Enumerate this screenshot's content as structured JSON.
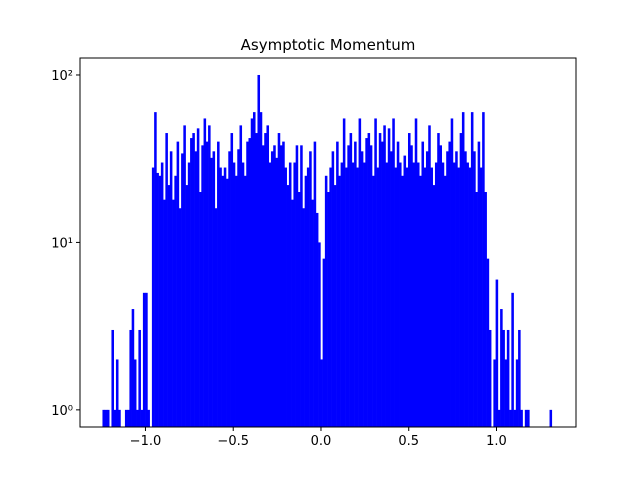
{
  "chart_data": {
    "type": "histogram",
    "title": "Asymptotic Momentum",
    "color": "#0000ff",
    "log_y": true,
    "bins": [
      -1.245,
      -1.2322,
      -1.2194,
      -1.2066,
      -1.1938,
      -1.181,
      -1.1682,
      -1.1554,
      -1.1426,
      -1.1298,
      -1.117,
      -1.1042,
      -1.0914,
      -1.0786,
      -1.0658,
      -1.053,
      -1.0402,
      -1.0274,
      -1.0146,
      -1.0018,
      -0.989,
      -0.9762,
      -0.9634,
      -0.9506,
      -0.9378,
      -0.925,
      -0.9122,
      -0.8994,
      -0.8866,
      -0.8738,
      -0.861,
      -0.8482,
      -0.8354,
      -0.8226,
      -0.8098,
      -0.797,
      -0.7842,
      -0.7714,
      -0.7586,
      -0.7458,
      -0.733,
      -0.7202,
      -0.7074,
      -0.6946,
      -0.6818,
      -0.669,
      -0.6562,
      -0.6434,
      -0.6306,
      -0.6178,
      -0.605,
      -0.5922,
      -0.5794,
      -0.5666,
      -0.5538,
      -0.541,
      -0.5282,
      -0.5154,
      -0.5026,
      -0.4898,
      -0.477,
      -0.4642,
      -0.4514,
      -0.4386,
      -0.4258,
      -0.413,
      -0.4002,
      -0.3874,
      -0.3746,
      -0.3618,
      -0.349,
      -0.3362,
      -0.3234,
      -0.3106,
      -0.2978,
      -0.285,
      -0.2722,
      -0.2594,
      -0.2466,
      -0.2338,
      -0.221,
      -0.2082,
      -0.1954,
      -0.1826,
      -0.1698,
      -0.157,
      -0.1442,
      -0.1314,
      -0.1186,
      -0.1058,
      -0.093,
      -0.0802,
      -0.0674,
      -0.0546,
      -0.0418,
      -0.029,
      -0.0162,
      -0.0034,
      0.0094,
      0.0222,
      0.035,
      0.0478,
      0.0606,
      0.0734,
      0.0862,
      0.099,
      0.1118,
      0.1246,
      0.1374,
      0.1502,
      0.163,
      0.1758,
      0.1886,
      0.2014,
      0.2142,
      0.227,
      0.2398,
      0.2526,
      0.2654,
      0.2782,
      0.291,
      0.3038,
      0.3166,
      0.3294,
      0.3422,
      0.355,
      0.3678,
      0.3806,
      0.3934,
      0.4062,
      0.419,
      0.4318,
      0.4446,
      0.4574,
      0.4702,
      0.483,
      0.4958,
      0.5086,
      0.5214,
      0.5342,
      0.547,
      0.5598,
      0.5726,
      0.5854,
      0.5982,
      0.611,
      0.6238,
      0.6366,
      0.6494,
      0.6622,
      0.675,
      0.6878,
      0.7006,
      0.7134,
      0.7262,
      0.739,
      0.7518,
      0.7646,
      0.7774,
      0.7902,
      0.803,
      0.8158,
      0.8286,
      0.8414,
      0.8542,
      0.867,
      0.8798,
      0.8926,
      0.9054,
      0.9182,
      0.931,
      0.9438,
      0.9566,
      0.9694,
      0.9822,
      0.995,
      1.0078,
      1.0206,
      1.0334,
      1.0462,
      1.059,
      1.0718,
      1.0846,
      1.0974,
      1.1102,
      1.123,
      1.1358,
      1.1486,
      1.1614,
      1.1742,
      1.187,
      1.1998,
      1.2126,
      1.2254,
      1.2382,
      1.251,
      1.2638,
      1.2766,
      1.2894,
      1.3022,
      1.315
    ],
    "values": [
      1,
      1,
      1,
      0,
      3,
      1,
      2,
      1,
      0,
      0,
      1,
      1,
      3,
      4,
      2,
      1,
      3,
      1,
      5,
      5,
      1,
      0,
      28,
      60,
      26,
      25,
      30,
      18,
      45,
      22,
      35,
      18,
      25,
      40,
      16,
      34,
      50,
      22,
      30,
      42,
      45,
      35,
      48,
      20,
      38,
      55,
      40,
      50,
      32,
      35,
      16,
      40,
      28,
      25,
      28,
      24,
      35,
      45,
      30,
      25,
      36,
      50,
      30,
      25,
      40,
      42,
      55,
      60,
      45,
      100,
      60,
      38,
      45,
      50,
      30,
      35,
      38,
      32,
      45,
      38,
      40,
      28,
      22,
      30,
      18,
      30,
      38,
      20,
      38,
      16,
      25,
      28,
      35,
      18,
      40,
      15,
      10,
      2,
      8,
      25,
      20,
      28,
      35,
      22,
      40,
      25,
      30,
      55,
      28,
      38,
      45,
      30,
      40,
      28,
      55,
      35,
      30,
      42,
      45,
      38,
      25,
      55,
      28,
      45,
      40,
      50,
      30,
      48,
      35,
      55,
      28,
      40,
      30,
      25,
      33,
      28,
      45,
      38,
      30,
      55,
      30,
      25,
      40,
      28,
      35,
      50,
      28,
      22,
      30,
      45,
      38,
      30,
      25,
      35,
      40,
      55,
      30,
      35,
      28,
      45,
      60,
      35,
      30,
      28,
      60,
      35,
      20,
      40,
      28,
      60,
      20,
      8,
      3,
      0,
      2,
      6,
      1,
      4,
      3,
      2,
      3,
      1,
      5,
      1,
      2,
      3,
      1,
      0,
      1,
      1,
      0,
      0,
      0,
      0,
      0,
      0,
      0,
      0,
      0,
      1
    ],
    "xlim": [
      -1.373,
      1.453
    ],
    "ylim": [
      0.79,
      126.3
    ],
    "xticks": [
      {
        "value": -1.0,
        "label": "−1.0"
      },
      {
        "value": -0.5,
        "label": "−0.5"
      },
      {
        "value": 0,
        "label": "0.0"
      },
      {
        "value": 0.5,
        "label": "0.5"
      },
      {
        "value": 1.0,
        "label": "1.0"
      }
    ],
    "yticks": [
      {
        "value": 1,
        "label": "10⁰"
      },
      {
        "value": 10,
        "label": "10¹"
      },
      {
        "value": 100,
        "label": "10²"
      }
    ]
  }
}
